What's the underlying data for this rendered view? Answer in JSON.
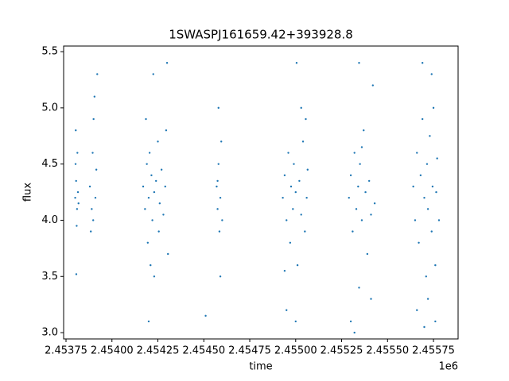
{
  "chart_data": {
    "type": "scatter",
    "title": "1SWASPJ161659.42+393928.8",
    "x_label": "time",
    "y_label": "flux",
    "x_offset_label": "1e6",
    "color": "#1f77b4",
    "x": [
      2453800,
      2453805,
      2453810,
      2453802,
      2453815,
      2453808,
      2453812,
      2453803,
      2453806,
      2453818,
      2453880,
      2453890,
      2453895,
      2453900,
      2453905,
      2453910,
      2453915,
      2453885,
      2453920,
      2453898,
      2454170,
      2454180,
      2454190,
      2454195,
      2454200,
      2454205,
      2454210,
      2454215,
      2454220,
      2454225,
      2454230,
      2454240,
      2454250,
      2454255,
      2454260,
      2454270,
      2454280,
      2454290,
      2454295,
      2454300,
      2454305,
      2454200,
      2454230,
      2454185,
      2454570,
      2454575,
      2454580,
      2454585,
      2454590,
      2454595,
      2454590,
      2454580,
      2454575,
      2454600,
      2454510,
      2454930,
      2454940,
      2454950,
      2454960,
      2454970,
      2454975,
      2454985,
      2454990,
      2455000,
      2455005,
      2455010,
      2455020,
      2455030,
      2455040,
      2455050,
      2455060,
      2455065,
      2454950,
      2455000,
      2455030,
      2455055,
      2454940,
      2455290,
      2455300,
      2455310,
      2455320,
      2455330,
      2455340,
      2455345,
      2455350,
      2455360,
      2455370,
      2455380,
      2455390,
      2455400,
      2455410,
      2455420,
      2455430,
      2455300,
      2455345,
      2455410,
      2455360,
      2455320,
      2455640,
      2455650,
      2455660,
      2455670,
      2455680,
      2455690,
      2455700,
      2455710,
      2455715,
      2455720,
      2455730,
      2455740,
      2455745,
      2455750,
      2455760,
      2455765,
      2455770,
      2455780,
      2455660,
      2455700,
      2455740,
      2455760,
      2455690,
      2455720
    ],
    "values": [
      4.2,
      4.35,
      4.1,
      4.5,
      4.25,
      3.95,
      4.6,
      4.8,
      3.52,
      4.15,
      4.3,
      4.1,
      4.6,
      4.9,
      5.1,
      4.2,
      4.45,
      3.9,
      5.3,
      4.0,
      4.3,
      4.1,
      4.5,
      3.8,
      4.2,
      4.6,
      3.6,
      4.4,
      4.0,
      5.3,
      4.25,
      4.35,
      4.7,
      3.9,
      4.15,
      4.45,
      4.05,
      4.3,
      4.8,
      5.4,
      3.7,
      3.1,
      3.5,
      4.9,
      4.3,
      4.1,
      4.5,
      3.9,
      4.2,
      4.7,
      3.5,
      5.0,
      4.35,
      4.0,
      3.15,
      4.2,
      4.4,
      4.0,
      4.6,
      3.8,
      4.3,
      4.1,
      4.5,
      4.25,
      5.4,
      3.6,
      4.35,
      4.05,
      4.7,
      3.9,
      4.2,
      4.45,
      3.2,
      3.1,
      5.0,
      4.9,
      3.55,
      4.2,
      4.4,
      3.9,
      4.6,
      4.1,
      4.3,
      3.4,
      4.5,
      4.0,
      4.8,
      4.25,
      3.7,
      4.35,
      4.05,
      5.2,
      4.15,
      3.1,
      5.4,
      3.3,
      4.65,
      3.0,
      4.3,
      4.0,
      4.6,
      3.8,
      4.4,
      5.4,
      4.2,
      3.5,
      4.5,
      4.1,
      4.75,
      3.9,
      4.3,
      5.0,
      3.6,
      4.25,
      4.55,
      4.0,
      3.2,
      3.05,
      5.3,
      3.1,
      4.9,
      3.3
    ],
    "xlim": [
      2453737,
      2455884
    ],
    "xticks": [
      {
        "value": 2453750,
        "label": "2.45375"
      },
      {
        "value": 2454000,
        "label": "2.45400"
      },
      {
        "value": 2454250,
        "label": "2.45425"
      },
      {
        "value": 2454500,
        "label": "2.45450"
      },
      {
        "value": 2454750,
        "label": "2.45475"
      },
      {
        "value": 2455000,
        "label": "2.45500"
      },
      {
        "value": 2455250,
        "label": "2.45525"
      },
      {
        "value": 2455500,
        "label": "2.45550"
      },
      {
        "value": 2455750,
        "label": "2.45575"
      }
    ],
    "ylim": [
      2.944,
      5.55
    ],
    "yticks": [
      {
        "value": 3,
        "label": "3.0"
      },
      3.5,
      {
        "value": 4,
        "label": "4.0"
      },
      4.5,
      {
        "value": 5,
        "label": "5.0"
      },
      5.5
    ]
  }
}
